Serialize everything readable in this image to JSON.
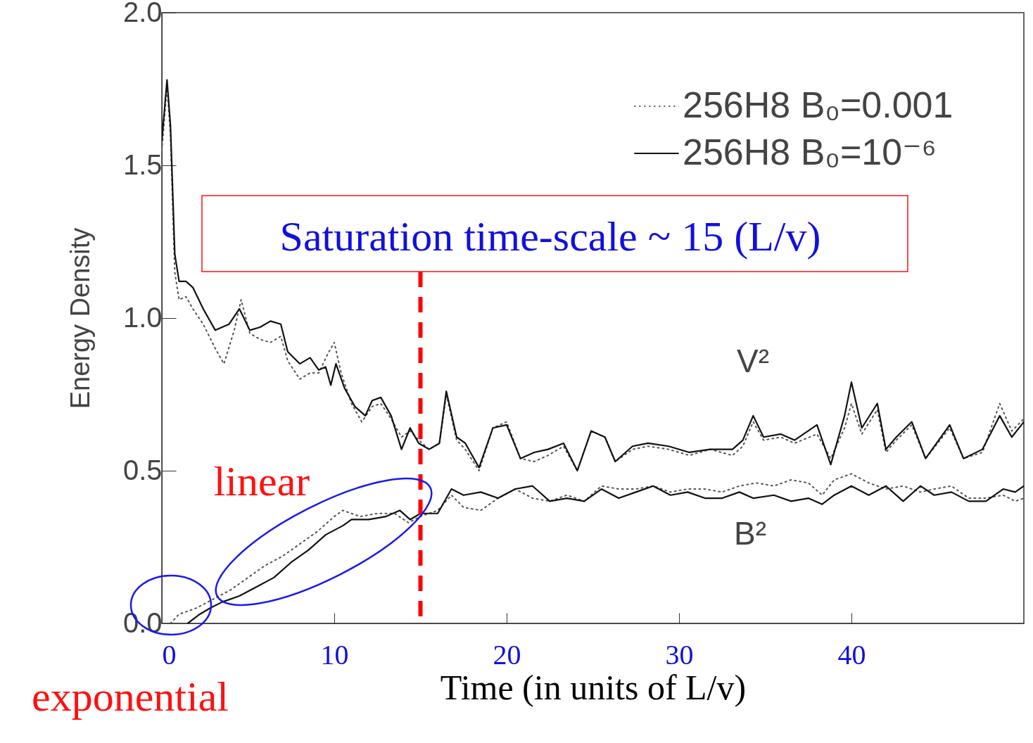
{
  "chart_data": {
    "type": "line",
    "xlabel": "Time (in units of L/v)",
    "ylabel": "Energy Density",
    "xlim": [
      0,
      50
    ],
    "ylim": [
      0,
      2
    ],
    "xticks": [
      0,
      10,
      20,
      30,
      40
    ],
    "yticks": [
      {
        "value": 0,
        "label": "0.0"
      },
      0.5,
      {
        "value": 1,
        "label": "1.0"
      },
      1.5,
      {
        "value": 2,
        "label": "2.0"
      }
    ],
    "grid": false,
    "legend": "top right",
    "marker": "none",
    "series": [
      {
        "name": "256H8 B₀=0.001",
        "color": "#555555",
        "line_style": "dotted",
        "x": [
          0,
          0.3,
          0.5,
          0.75,
          1.0,
          1.4,
          1.8,
          2.4,
          3.1,
          3.6,
          4.2,
          4.6,
          5.1,
          5.7,
          6.3,
          6.9,
          7.3,
          8.0,
          8.6,
          9.1,
          9.6,
          10.0,
          10.4,
          11.0,
          11.6,
          12.2,
          12.7,
          13.3,
          13.9,
          14.4,
          14.9,
          15.5,
          16.1,
          16.5,
          17.1,
          17.6,
          18.4,
          19.2,
          20.0,
          20.8,
          21.6,
          22.4,
          23.3,
          24.1,
          24.9,
          25.7,
          26.3,
          27.3,
          28.2,
          29.4,
          30.6,
          31.8,
          33.1,
          33.7,
          34.3,
          34.9,
          35.9,
          36.7,
          38.0,
          38.8,
          39.6,
          40.0,
          40.6,
          41.5,
          42.0,
          42.6,
          43.5,
          44.3,
          45.7,
          46.5,
          47.6,
          48.6,
          49.3,
          50
        ],
        "values": [
          1.55,
          1.76,
          1.6,
          1.15,
          1.06,
          1.07,
          1.03,
          0.98,
          0.9,
          0.85,
          0.96,
          1.06,
          0.95,
          0.93,
          0.92,
          0.94,
          0.86,
          0.8,
          0.82,
          0.82,
          0.88,
          0.92,
          0.82,
          0.72,
          0.66,
          0.71,
          0.72,
          0.67,
          0.61,
          0.63,
          0.6,
          0.57,
          0.59,
          0.75,
          0.6,
          0.57,
          0.5,
          0.64,
          0.66,
          0.54,
          0.53,
          0.55,
          0.58,
          0.5,
          0.63,
          0.61,
          0.53,
          0.57,
          0.58,
          0.57,
          0.55,
          0.57,
          0.55,
          0.58,
          0.66,
          0.6,
          0.61,
          0.59,
          0.62,
          0.54,
          0.64,
          0.72,
          0.62,
          0.7,
          0.56,
          0.6,
          0.65,
          0.54,
          0.64,
          0.54,
          0.56,
          0.72,
          0.63,
          0.67
        ]
      },
      {
        "name": "256H8 B₀=10⁻⁶",
        "color": "#111111",
        "line_style": "solid",
        "x": [
          0,
          0.3,
          0.5,
          0.75,
          1.0,
          1.4,
          1.8,
          2.4,
          3.1,
          3.9,
          4.5,
          5.1,
          5.7,
          6.3,
          6.9,
          7.3,
          8.0,
          8.6,
          9.1,
          9.5,
          9.8,
          10.1,
          10.6,
          11.2,
          11.8,
          12.2,
          12.7,
          13.3,
          13.9,
          14.4,
          14.9,
          15.5,
          16.1,
          16.5,
          17.1,
          17.6,
          18.4,
          19.2,
          20.0,
          20.8,
          21.6,
          22.4,
          23.3,
          24.1,
          24.9,
          25.7,
          26.3,
          27.3,
          28.2,
          29.4,
          30.6,
          31.8,
          33.1,
          33.7,
          34.3,
          34.9,
          35.9,
          36.7,
          38.0,
          38.8,
          39.6,
          40.0,
          40.6,
          41.5,
          42.0,
          42.6,
          43.5,
          44.3,
          45.7,
          46.5,
          47.6,
          48.6,
          49.3,
          50
        ],
        "values": [
          1.58,
          1.78,
          1.63,
          1.21,
          1.12,
          1.12,
          1.1,
          1.03,
          0.96,
          0.98,
          1.03,
          0.96,
          0.97,
          0.99,
          0.98,
          0.89,
          0.85,
          0.87,
          0.83,
          0.84,
          0.78,
          0.85,
          0.77,
          0.71,
          0.68,
          0.73,
          0.74,
          0.68,
          0.57,
          0.64,
          0.59,
          0.57,
          0.59,
          0.76,
          0.61,
          0.59,
          0.51,
          0.64,
          0.65,
          0.54,
          0.56,
          0.57,
          0.59,
          0.5,
          0.63,
          0.61,
          0.53,
          0.58,
          0.59,
          0.58,
          0.56,
          0.57,
          0.57,
          0.6,
          0.68,
          0.61,
          0.62,
          0.6,
          0.65,
          0.52,
          0.68,
          0.79,
          0.64,
          0.72,
          0.57,
          0.61,
          0.66,
          0.54,
          0.65,
          0.54,
          0.57,
          0.68,
          0.61,
          0.66
        ]
      },
      {
        "color": "#555555",
        "line_style": "dotted",
        "x": [
          0.5,
          1.0,
          2.0,
          3.0,
          4.0,
          5.0,
          6.0,
          7.0,
          8.0,
          9.0,
          10.0,
          10.5,
          11.5,
          12.5,
          13.5,
          14.3,
          15.0,
          16.0,
          16.8,
          17.5,
          18.5,
          19.5,
          20.5,
          21.5,
          22.5,
          23.5,
          24.5,
          25.5,
          26.5,
          27.5,
          28.5,
          29.5,
          30.5,
          31.5,
          32.5,
          33.5,
          34.5,
          35.5,
          36.5,
          37.5,
          38.3,
          39.0,
          40.0,
          41.0,
          42.0,
          43.0,
          44.0,
          44.8,
          45.8,
          46.8,
          47.8,
          48.8,
          49.5,
          50
        ],
        "values": [
          0,
          0.03,
          0.05,
          0.08,
          0.11,
          0.15,
          0.19,
          0.22,
          0.26,
          0.3,
          0.35,
          0.37,
          0.35,
          0.36,
          0.36,
          0.33,
          0.35,
          0.37,
          0.42,
          0.38,
          0.37,
          0.41,
          0.44,
          0.41,
          0.4,
          0.42,
          0.4,
          0.45,
          0.44,
          0.44,
          0.45,
          0.43,
          0.44,
          0.44,
          0.43,
          0.45,
          0.46,
          0.45,
          0.47,
          0.46,
          0.42,
          0.47,
          0.49,
          0.46,
          0.44,
          0.45,
          0.43,
          0.44,
          0.45,
          0.41,
          0.41,
          0.42,
          0.4,
          0.41
        ]
      },
      {
        "color": "#111111",
        "line_style": "solid",
        "x": [
          1.5,
          2.2,
          2.8,
          3.5,
          4.5,
          5.5,
          6.5,
          7.5,
          8.5,
          9.5,
          10.5,
          11.0,
          12.0,
          13.0,
          13.8,
          14.4,
          15.0,
          16.0,
          16.8,
          17.5,
          18.5,
          19.5,
          20.5,
          21.5,
          22.5,
          23.5,
          24.5,
          25.5,
          26.5,
          27.5,
          28.5,
          29.5,
          30.5,
          31.5,
          32.5,
          33.5,
          34.3,
          35.5,
          36.5,
          37.5,
          38.3,
          39.0,
          40.0,
          41.0,
          42.0,
          43.0,
          44.0,
          44.8,
          45.8,
          46.8,
          47.8,
          48.8,
          49.5,
          50
        ],
        "values": [
          0,
          0.03,
          0.05,
          0.07,
          0.09,
          0.12,
          0.15,
          0.2,
          0.24,
          0.29,
          0.32,
          0.34,
          0.34,
          0.35,
          0.37,
          0.34,
          0.36,
          0.36,
          0.44,
          0.42,
          0.43,
          0.41,
          0.44,
          0.45,
          0.4,
          0.41,
          0.4,
          0.44,
          0.41,
          0.43,
          0.45,
          0.42,
          0.43,
          0.41,
          0.41,
          0.43,
          0.41,
          0.42,
          0.4,
          0.41,
          0.39,
          0.42,
          0.45,
          0.42,
          0.45,
          0.4,
          0.45,
          0.42,
          0.43,
          0.4,
          0.4,
          0.44,
          0.43,
          0.45
        ]
      }
    ],
    "ref_lines": [
      {
        "axis": "x",
        "value": 15,
        "color": "#ff0000",
        "line_style": "dashed"
      }
    ],
    "annotations": [
      "Saturation time-scale ~ 15 (L/v)",
      "linear",
      "exponential",
      "V²",
      "B²"
    ]
  }
}
